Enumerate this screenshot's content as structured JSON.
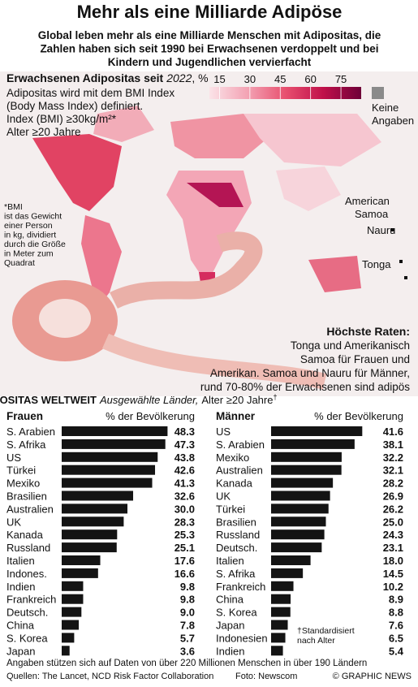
{
  "header": {
    "title": "Mehr als eine Milliarde Adipöse",
    "subtitle": [
      "Global leben mehr als eine Milliarde Menschen mit Adipositas, die",
      "Zahlen haben sich seit 1990 bei Erwachsenen verdoppelt und bei",
      "Kindern und Jugendlichen vervierfacht"
    ]
  },
  "map": {
    "title": "Erwachsenen Adipositas seit",
    "year": "2022",
    "unit": ", %",
    "legend_ticks": [
      15,
      30,
      45,
      60,
      75
    ],
    "legend_range": [
      10,
      85
    ],
    "legend_colors": [
      "#fbe3e8",
      "#f3a3b4",
      "#e8506f",
      "#c0104a",
      "#6e0038"
    ],
    "no_data": [
      "Keine",
      "Angaben"
    ],
    "no_data_color": "#8a8a8a",
    "definition": [
      "Adipositas wird mit dem BMI Index",
      "(Body Mass Index) definiert.",
      "Index (BMI) ≥30kg/m²*",
      "Alter ≥20 Jahre"
    ],
    "bmi_note": [
      "*BMI",
      "ist das Gewicht",
      "einer Person",
      "in kg, dividiert",
      "durch die Größe",
      "in Meter zum",
      "Quadrat"
    ],
    "places": [
      "American",
      "Samoa",
      "Nauru",
      "Tonga"
    ],
    "highest_title": "Höchste Raten:",
    "highest_text": [
      "Tonga und Amerikanisch",
      "Samoa für Frauen und",
      "Amerikan. Samoa und Nauru für Männer,",
      "rund 70-80% der Erwachsenen sind adipös"
    ]
  },
  "section": {
    "title": "ADIPOSITAS WELTWEIT",
    "subtitle_italic": "Ausgewählte Länder,",
    "subtitle": "Alter ≥20 Jahre",
    "mark": "†"
  },
  "chart_data": [
    {
      "type": "bar",
      "orientation": "horizontal",
      "title": "Frauen",
      "xlabel": "% der Bevölkerung",
      "color": "#141414",
      "xlim": [
        0,
        50
      ],
      "categories": [
        "S. Arabien",
        "S. Afrika",
        "US",
        "Türkei",
        "Mexiko",
        "Brasilien",
        "Australien",
        "UK",
        "Kanada",
        "Russland",
        "Italien",
        "Indones.",
        "Indien",
        "Frankreich",
        "Deutsch.",
        "China",
        "S. Korea",
        "Japan"
      ],
      "values": [
        48.3,
        47.3,
        43.8,
        42.6,
        41.3,
        32.6,
        30.0,
        28.3,
        25.3,
        25.1,
        17.6,
        16.6,
        9.8,
        9.8,
        9.0,
        7.8,
        5.7,
        3.6
      ],
      "value_labels": [
        "48.3",
        "47.3",
        "43.8",
        "42.6",
        "41.3",
        "32.6",
        "30.0",
        "28.3",
        "25.3",
        "25.1",
        "17.6",
        "16.6",
        "9.8",
        "9.8",
        "9.0",
        "7.8",
        "5.7",
        "3.6"
      ]
    },
    {
      "type": "bar",
      "orientation": "horizontal",
      "title": "Männer",
      "xlabel": "% der Bevölkerung",
      "color": "#141414",
      "xlim": [
        0,
        50
      ],
      "categories": [
        "US",
        "S. Arabien",
        "Mexiko",
        "Australien",
        "Kanada",
        "UK",
        "Türkei",
        "Brasilien",
        "Russland",
        "Deutsch.",
        "Italien",
        "S. Afrika",
        "Frankreich",
        "China",
        "S. Korea",
        "Japan",
        "Indonesien",
        "Indien"
      ],
      "values": [
        41.6,
        38.1,
        32.2,
        32.1,
        28.2,
        26.9,
        26.2,
        25.0,
        24.3,
        23.1,
        18.0,
        14.5,
        10.2,
        8.9,
        8.8,
        7.6,
        6.5,
        5.4
      ],
      "value_labels": [
        "41.6",
        "38.1",
        "32.2",
        "32.1",
        "28.2",
        "26.9",
        "26.2",
        "25.0",
        "24.3",
        "23.1",
        "18.0",
        "14.5",
        "10.2",
        "8.9",
        "8.8",
        "7.6",
        "6.5",
        "5.4"
      ],
      "footnote": [
        "†Standardisiert",
        "nach Alter"
      ]
    }
  ],
  "footer": {
    "note": "Angaben stützen sich auf Daten von über 220 Millionen Menschen in über 190 Ländern",
    "sources": "Quellen: The Lancet, NCD Risk Factor Collaboration",
    "photo": "Foto: Newscom",
    "credit": "© GRAPHIC NEWS"
  }
}
